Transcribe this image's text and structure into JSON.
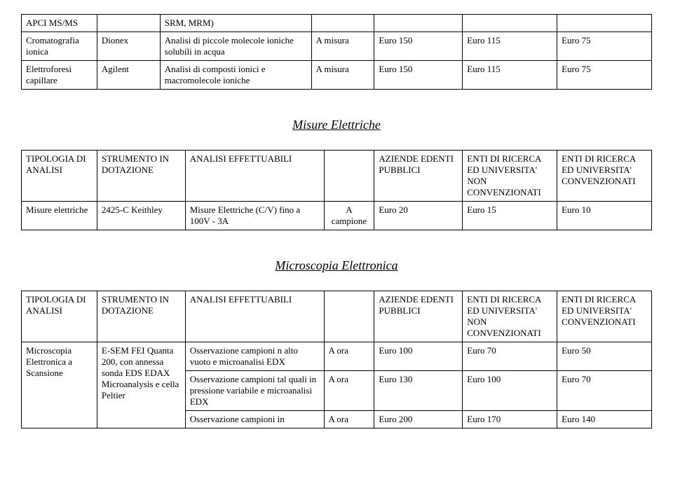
{
  "top_table": {
    "col_widths": [
      "12%",
      "10%",
      "24%",
      "10%",
      "14%",
      "15%",
      "15%"
    ],
    "rows": [
      [
        "APCI MS/MS",
        "",
        "SRM, MRM)",
        "",
        "",
        "",
        ""
      ],
      [
        "Cromatografia ionica",
        "Dionex",
        "Analisi di piccole molecole ioniche solubili in acqua",
        "A misura",
        "Euro 150",
        "Euro 115",
        "Euro 75"
      ],
      [
        "Elettroforesi capillare",
        "Agilent",
        "Analisi di composti ionici e macromolecole ioniche",
        "A misura",
        "Euro 150",
        "Euro 115",
        "Euro 75"
      ]
    ]
  },
  "section1": {
    "title": "Misure Elettriche",
    "col_widths": [
      "12%",
      "14%",
      "22%",
      "8%",
      "14%",
      "15%",
      "15%"
    ],
    "header": [
      "TIPOLOGIA DI ANALISI",
      "STRUMENTO IN DOTAZIONE",
      "ANALISI EFFETTUABILI",
      "",
      "AZIENDE EDENTI PUBBLICI",
      "ENTI DI RICERCA ED UNIVERSITA' NON CONVENZIONATI",
      "ENTI DI RICERCA ED UNIVERSITA' CONVENZIONATI"
    ],
    "rows": [
      [
        "Misure elettriche",
        "2425-C Keithley",
        "Misure Elettriche (C/V) fino a 100V - 3A",
        "A campione",
        "Euro 20",
        "Euro 15",
        "Euro 10"
      ]
    ]
  },
  "section2": {
    "title": "Microscopia Elettronica",
    "col_widths": [
      "12%",
      "14%",
      "22%",
      "8%",
      "14%",
      "15%",
      "15%"
    ],
    "header": [
      "TIPOLOGIA DI ANALISI",
      "STRUMENTO IN DOTAZIONE",
      "ANALISI EFFETTUABILI",
      "",
      "AZIENDE EDENTI PUBBLICI",
      "ENTI DI RICERCA ED UNIVERSITA' NON CONVENZIONATI",
      "ENTI DI RICERCA ED UNIVERSITA' CONVENZIONATI"
    ],
    "rows_grouped": {
      "first": {
        "c0": "Microscopia Elettronica a Scansione",
        "c1": "E-SEM FEI Quanta 200, con annessa sonda EDS EDAX Microanalysis e cella Peltier",
        "c2": "Osservazione campioni n alto vuoto e microanalisi EDX",
        "c3": "A ora",
        "c4": "Euro 100",
        "c5": "Euro 70",
        "c6": "Euro 50"
      },
      "second": {
        "c2": "Osservazione campioni tal quali in pressione variabile e microanalisi EDX",
        "c3": "A ora",
        "c4": "Euro 130",
        "c5": "Euro 100",
        "c6": "Euro 70"
      },
      "third": {
        "c2": "Osservazione campioni in",
        "c3": "A ora",
        "c4": "Euro 200",
        "c5": "Euro 170",
        "c6": "Euro 140"
      }
    }
  }
}
